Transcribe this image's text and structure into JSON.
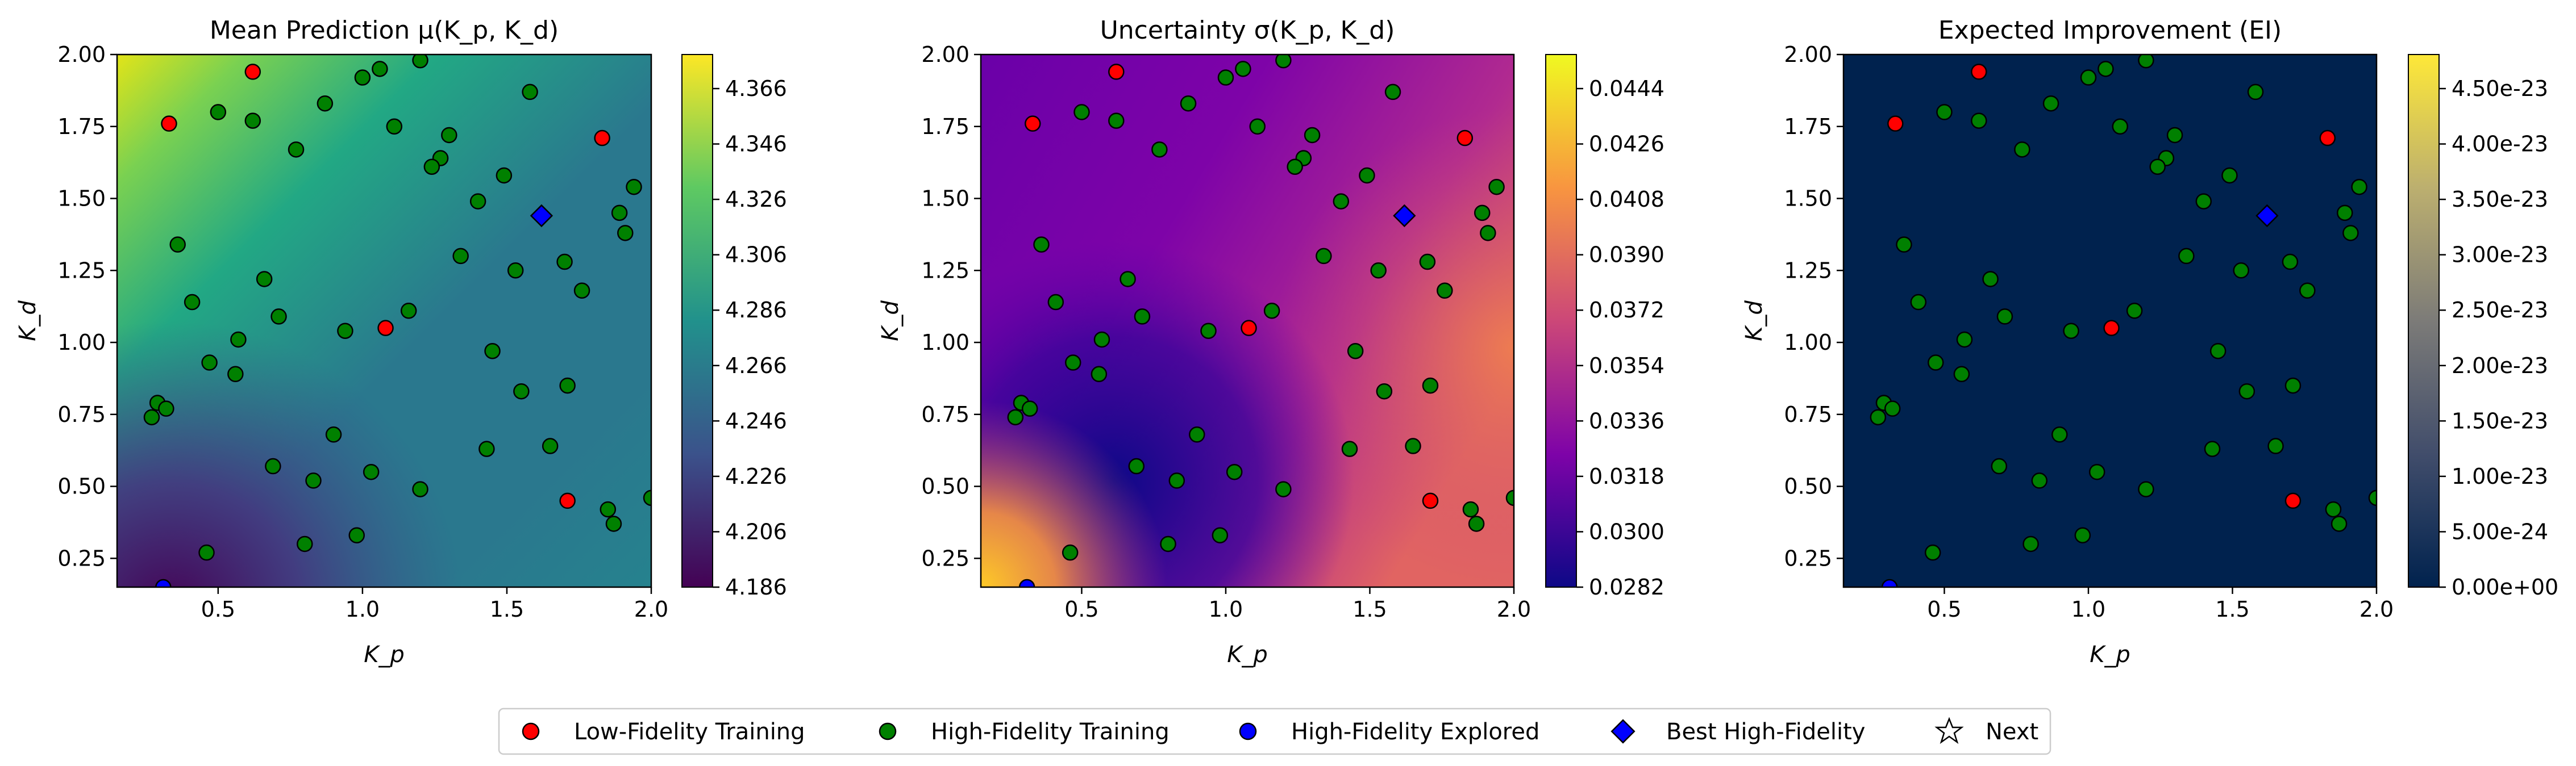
{
  "chart_data": [
    {
      "type": "heatmap",
      "title": "Mean Prediction μ(K_p, K_d)",
      "xlabel": "K_p",
      "ylabel": "K_d",
      "colormap": "viridis",
      "colorbar_ticks": [
        "4.366",
        "4.346",
        "4.326",
        "4.306",
        "4.286",
        "4.266",
        "4.246",
        "4.226",
        "4.206",
        "4.186"
      ]
    },
    {
      "type": "heatmap",
      "title": "Uncertainty σ(K_p, K_d)",
      "xlabel": "K_p",
      "ylabel": "K_d",
      "colormap": "plasma",
      "colorbar_ticks": [
        "0.0444",
        "0.0426",
        "0.0408",
        "0.0390",
        "0.0372",
        "0.0354",
        "0.0336",
        "0.0318",
        "0.0300",
        "0.0282"
      ]
    },
    {
      "type": "heatmap",
      "title": "Expected Improvement (EI)",
      "xlabel": "K_p",
      "ylabel": "K_d",
      "colormap": "cividis",
      "colorbar_ticks": [
        "4.50e-23",
        "4.00e-23",
        "3.50e-23",
        "3.00e-23",
        "2.50e-23",
        "2.00e-23",
        "1.50e-23",
        "1.00e-23",
        "5.00e-24",
        "0.00e+00"
      ]
    }
  ],
  "axes": {
    "xlim": [
      0.15,
      2.0
    ],
    "ylim": [
      0.15,
      2.0
    ],
    "xticks": [
      "0.5",
      "1.0",
      "1.5",
      "2.0"
    ],
    "yticks": [
      "2.00",
      "1.75",
      "1.50",
      "1.25",
      "1.00",
      "0.75",
      "0.50",
      "0.25"
    ]
  },
  "points": {
    "low_fidelity_training": [
      [
        0.62,
        1.94
      ],
      [
        0.33,
        1.76
      ],
      [
        1.83,
        1.71
      ],
      [
        1.08,
        1.05
      ],
      [
        1.71,
        0.45
      ]
    ],
    "high_fidelity_training": [
      [
        0.5,
        1.8
      ],
      [
        0.62,
        1.77
      ],
      [
        0.77,
        1.67
      ],
      [
        0.87,
        1.83
      ],
      [
        1.0,
        1.92
      ],
      [
        1.06,
        1.95
      ],
      [
        1.2,
        1.98
      ],
      [
        1.11,
        1.75
      ],
      [
        1.3,
        1.72
      ],
      [
        1.27,
        1.64
      ],
      [
        1.24,
        1.61
      ],
      [
        1.49,
        1.58
      ],
      [
        1.58,
        1.87
      ],
      [
        1.4,
        1.49
      ],
      [
        1.89,
        1.45
      ],
      [
        1.94,
        1.54
      ],
      [
        1.91,
        1.38
      ],
      [
        0.36,
        1.34
      ],
      [
        0.41,
        1.14
      ],
      [
        0.66,
        1.22
      ],
      [
        0.71,
        1.09
      ],
      [
        0.57,
        1.01
      ],
      [
        0.47,
        0.93
      ],
      [
        0.56,
        0.89
      ],
      [
        0.94,
        1.04
      ],
      [
        1.16,
        1.11
      ],
      [
        1.34,
        1.3
      ],
      [
        1.53,
        1.25
      ],
      [
        1.7,
        1.28
      ],
      [
        1.76,
        1.18
      ],
      [
        1.45,
        0.97
      ],
      [
        1.55,
        0.83
      ],
      [
        1.71,
        0.85
      ],
      [
        0.29,
        0.79
      ],
      [
        0.32,
        0.77
      ],
      [
        0.27,
        0.74
      ],
      [
        0.9,
        0.68
      ],
      [
        1.03,
        0.55
      ],
      [
        0.69,
        0.57
      ],
      [
        0.83,
        0.52
      ],
      [
        1.2,
        0.49
      ],
      [
        1.43,
        0.63
      ],
      [
        1.65,
        0.64
      ],
      [
        1.85,
        0.42
      ],
      [
        1.87,
        0.37
      ],
      [
        0.8,
        0.3
      ],
      [
        0.98,
        0.33
      ],
      [
        0.46,
        0.27
      ],
      [
        2.0,
        0.46
      ]
    ],
    "high_fidelity_explored": [
      [
        0.31,
        0.15
      ]
    ],
    "best_high_fidelity": [
      [
        1.62,
        1.44
      ]
    ]
  },
  "legend": {
    "low_fidelity": "Low-Fidelity Training",
    "high_fidelity": "High-Fidelity Training",
    "explored": "High-Fidelity Explored",
    "best": "Best High-Fidelity",
    "next": "Next"
  },
  "colors": {
    "low_fidelity": "#ff0000",
    "high_fidelity": "#008000",
    "explored": "#0000ff",
    "best": "#0000ff",
    "next_fill": "#ffffff"
  }
}
